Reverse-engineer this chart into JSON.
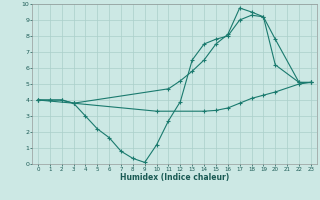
{
  "title": "",
  "xlabel": "Humidex (Indice chaleur)",
  "bg_color": "#cce8e4",
  "grid_color": "#aacfca",
  "line_color": "#1a7a6e",
  "xlim": [
    -0.5,
    23.5
  ],
  "ylim": [
    0,
    10
  ],
  "xticks": [
    0,
    1,
    2,
    3,
    4,
    5,
    6,
    7,
    8,
    9,
    10,
    11,
    12,
    13,
    14,
    15,
    16,
    17,
    18,
    19,
    20,
    21,
    22,
    23
  ],
  "yticks": [
    0,
    1,
    2,
    3,
    4,
    5,
    6,
    7,
    8,
    9,
    10
  ],
  "line1_x": [
    0,
    1,
    2,
    3,
    4,
    5,
    6,
    7,
    8,
    9,
    10,
    11,
    12,
    13,
    14,
    15,
    16,
    17,
    18,
    19,
    20,
    22,
    23
  ],
  "line1_y": [
    4,
    4,
    4,
    3.8,
    3.0,
    2.2,
    1.65,
    0.8,
    0.35,
    0.1,
    1.2,
    2.7,
    3.9,
    6.5,
    7.5,
    7.8,
    8.0,
    9.0,
    9.3,
    9.2,
    6.2,
    5.1,
    5.1
  ],
  "line2_x": [
    0,
    1,
    2,
    3,
    11,
    12,
    13,
    14,
    15,
    16,
    17,
    18,
    19,
    20,
    22,
    23
  ],
  "line2_y": [
    4,
    4,
    4,
    3.8,
    4.7,
    5.2,
    5.8,
    6.5,
    7.5,
    8.1,
    9.75,
    9.5,
    9.2,
    7.8,
    5.1,
    5.1
  ],
  "line3_x": [
    0,
    3,
    10,
    14,
    15,
    16,
    17,
    18,
    19,
    20,
    22,
    23
  ],
  "line3_y": [
    4,
    3.8,
    3.3,
    3.3,
    3.35,
    3.5,
    3.8,
    4.1,
    4.3,
    4.5,
    5.0,
    5.1
  ]
}
